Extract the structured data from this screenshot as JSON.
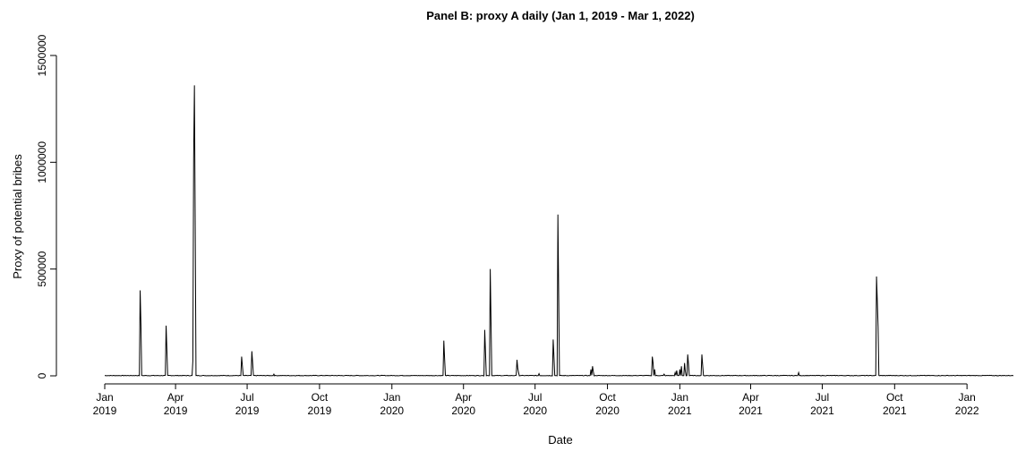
{
  "chart_data": {
    "type": "line",
    "title": "Panel B: proxy A daily (Jan 1, 2019 - Mar 1, 2022)",
    "xlabel": "Date",
    "ylabel": "Proxy of potential bribes",
    "xlim": [
      "2019-01-01",
      "2022-03-01"
    ],
    "ylim": [
      0,
      1500000
    ],
    "grid": false,
    "legend": "none",
    "line_color": "#000000",
    "y_ticks": [
      {
        "value": 0,
        "label": "0"
      },
      {
        "value": 500000,
        "label": "500000"
      },
      {
        "value": 1000000,
        "label": "1000000"
      },
      {
        "value": 1500000,
        "label": "1500000"
      }
    ],
    "x_ticks": [
      {
        "date": "2019-01-01",
        "label": [
          "Jan",
          "2019"
        ]
      },
      {
        "date": "2019-04-01",
        "label": [
          "Apr",
          "2019"
        ]
      },
      {
        "date": "2019-07-01",
        "label": [
          "Jul",
          "2019"
        ]
      },
      {
        "date": "2019-10-01",
        "label": [
          "Oct",
          "2019"
        ]
      },
      {
        "date": "2020-01-01",
        "label": [
          "Jan",
          "2020"
        ]
      },
      {
        "date": "2020-04-01",
        "label": [
          "Apr",
          "2020"
        ]
      },
      {
        "date": "2020-07-01",
        "label": [
          "Jul",
          "2020"
        ]
      },
      {
        "date": "2020-10-01",
        "label": [
          "Oct",
          "2020"
        ]
      },
      {
        "date": "2021-01-01",
        "label": [
          "Jan",
          "2021"
        ]
      },
      {
        "date": "2021-04-01",
        "label": [
          "Apr",
          "2021"
        ]
      },
      {
        "date": "2021-07-01",
        "label": [
          "Jul",
          "2021"
        ]
      },
      {
        "date": "2021-10-01",
        "label": [
          "Oct",
          "2021"
        ]
      },
      {
        "date": "2022-01-01",
        "label": [
          "Jan",
          "2022"
        ]
      }
    ],
    "series": [
      {
        "points": [
          [
            "2019-02-15",
            400000
          ],
          [
            "2019-02-16",
            240000
          ],
          [
            "2019-03-20",
            235000
          ],
          [
            "2019-03-21",
            120000
          ],
          [
            "2019-04-23",
            70000
          ],
          [
            "2019-04-24",
            1020000
          ],
          [
            "2019-04-25",
            1360000
          ],
          [
            "2019-04-26",
            700000
          ],
          [
            "2019-06-24",
            90000
          ],
          [
            "2019-06-25",
            45000
          ],
          [
            "2019-07-07",
            115000
          ],
          [
            "2019-07-08",
            60000
          ],
          [
            "2019-08-04",
            8000
          ],
          [
            "2020-03-07",
            165000
          ],
          [
            "2020-03-08",
            80000
          ],
          [
            "2020-04-28",
            215000
          ],
          [
            "2020-04-29",
            110000
          ],
          [
            "2020-05-05",
            500000
          ],
          [
            "2020-05-06",
            250000
          ],
          [
            "2020-06-08",
            75000
          ],
          [
            "2020-06-09",
            35000
          ],
          [
            "2020-06-10",
            15000
          ],
          [
            "2020-07-06",
            10000
          ],
          [
            "2020-07-24",
            170000
          ],
          [
            "2020-07-25",
            90000
          ],
          [
            "2020-07-30",
            755000
          ],
          [
            "2020-07-31",
            380000
          ],
          [
            "2020-09-10",
            30000
          ],
          [
            "2020-09-12",
            45000
          ],
          [
            "2020-09-13",
            20000
          ],
          [
            "2020-11-27",
            90000
          ],
          [
            "2020-11-28",
            60000
          ],
          [
            "2020-11-30",
            30000
          ],
          [
            "2020-12-12",
            8000
          ],
          [
            "2020-12-26",
            15000
          ],
          [
            "2020-12-28",
            25000
          ],
          [
            "2021-01-01",
            30000
          ],
          [
            "2021-01-03",
            45000
          ],
          [
            "2021-01-07",
            60000
          ],
          [
            "2021-01-08",
            20000
          ],
          [
            "2021-01-11",
            100000
          ],
          [
            "2021-01-12",
            55000
          ],
          [
            "2021-01-29",
            100000
          ],
          [
            "2021-01-30",
            50000
          ],
          [
            "2021-06-01",
            15000
          ],
          [
            "2021-09-08",
            465000
          ],
          [
            "2021-09-09",
            350000
          ],
          [
            "2021-09-10",
            230000
          ]
        ]
      }
    ]
  }
}
